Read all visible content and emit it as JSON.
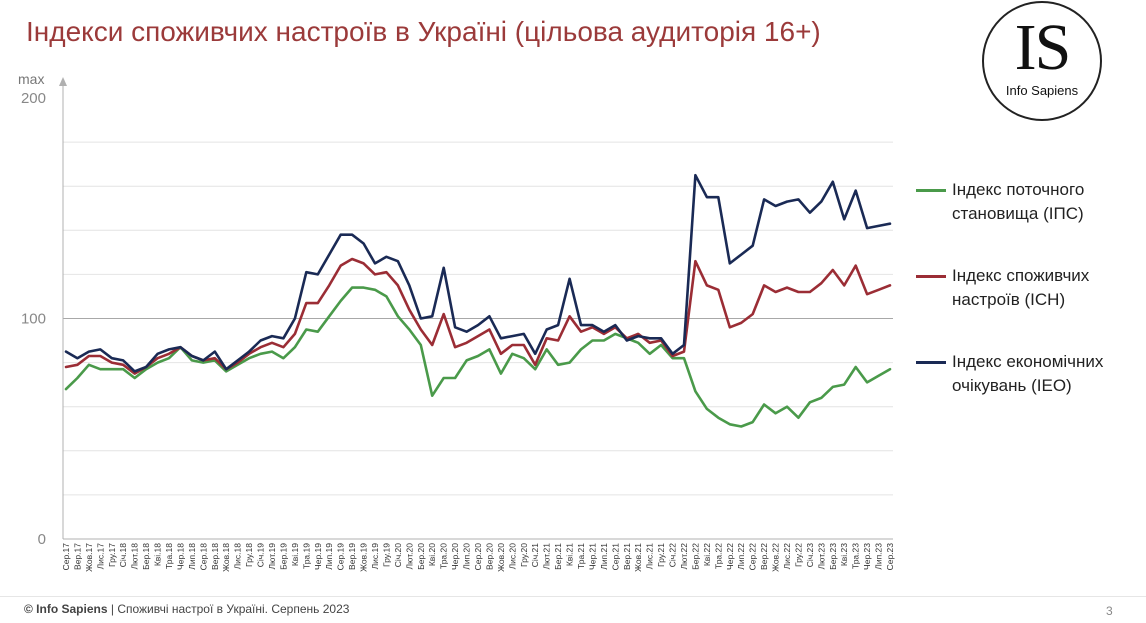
{
  "title": "Індекси споживчих настроїв в Україні (цільова аудиторія 16+)",
  "logo": {
    "mark": "IS",
    "name": "Info Sapiens"
  },
  "footer": {
    "brand": "© Info Sapiens",
    "text": " | Споживчі настрої в Україні. Серпень 2023"
  },
  "page_number": "3",
  "colors": {
    "ips": "#4a9a4a",
    "isn": "#9b2d35",
    "ieo": "#1a2a55",
    "title": "#9b3a3a"
  },
  "chart_data": {
    "type": "line",
    "title": "",
    "xlabel": "",
    "ylabel": "max",
    "ylim": [
      0,
      200
    ],
    "y_ticks": [
      0,
      100,
      200
    ],
    "grid": true,
    "legend_position": "right",
    "categories": [
      "Сер.17",
      "Вер.17",
      "Жов.17",
      "Лис.17",
      "Гру.17",
      "Січ.18",
      "Лют.18",
      "Бер.18",
      "Кві.18",
      "Тра.18",
      "Чер.18",
      "Лип.18",
      "Сер.18",
      "Вер.18",
      "Жов.18",
      "Лис.18",
      "Гру.18",
      "Січ.19",
      "Лют.19",
      "Бер.19",
      "Кві.19",
      "Тра.19",
      "Чер.19",
      "Лип.19",
      "Сер.19",
      "Вер.19",
      "Жов.19",
      "Лис.19",
      "Гру.19",
      "Січ.20",
      "Лют.20",
      "Бер.20",
      "Кві.20",
      "Тра.20",
      "Чер.20",
      "Лип.20",
      "Сер.20",
      "Вер.20",
      "Жов.20",
      "Лис.20",
      "Гру.20",
      "Січ.21",
      "Лют.21",
      "Бер.21",
      "Кві.21",
      "Тра.21",
      "Чер.21",
      "Лип.21",
      "Сер.21",
      "Вер.21",
      "Жов.21",
      "Лис.21",
      "Гру.21",
      "Січ.22",
      "Лют.22",
      "Бер.22",
      "Кві.22",
      "Тра.22",
      "Чер.22",
      "Лип.22",
      "Сер.22",
      "Вер.22",
      "Жов.22",
      "Лис.22",
      "Гру.22",
      "Січ.23",
      "Лют.23",
      "Бер.23",
      "Кві.23",
      "Тра.23",
      "Чер.23",
      "Лип.23",
      "Сер.23"
    ],
    "series": [
      {
        "name": "Індекс поточного становища (ІПС)",
        "key": "ips",
        "values": [
          68,
          73,
          79,
          77,
          77,
          77,
          73,
          77,
          80,
          82,
          87,
          81,
          80,
          81,
          76,
          79,
          82,
          84,
          85,
          82,
          87,
          95,
          94,
          101,
          108,
          114,
          114,
          113,
          110,
          101,
          95,
          88,
          65,
          73,
          73,
          81,
          83,
          86,
          75,
          84,
          82,
          77,
          86,
          79,
          80,
          86,
          90,
          90,
          93,
          91,
          89,
          84,
          88,
          82,
          82,
          67,
          59,
          55,
          52,
          51,
          53,
          61,
          57,
          60,
          55,
          62,
          64,
          69,
          70,
          78,
          71,
          74,
          77
        ]
      },
      {
        "name": "Індекс споживчих настроїв (ІСН)",
        "key": "isn",
        "values": [
          78,
          79,
          83,
          83,
          80,
          79,
          75,
          78,
          82,
          84,
          87,
          83,
          81,
          82,
          77,
          80,
          84,
          87,
          89,
          87,
          93,
          107,
          107,
          115,
          124,
          127,
          125,
          120,
          121,
          115,
          104,
          95,
          88,
          102,
          87,
          89,
          92,
          95,
          84,
          88,
          88,
          79,
          91,
          90,
          101,
          94,
          96,
          93,
          96,
          91,
          93,
          89,
          90,
          83,
          85,
          126,
          115,
          113,
          96,
          98,
          102,
          115,
          112,
          114,
          112,
          112,
          116,
          122,
          115,
          124,
          111,
          113,
          115
        ]
      },
      {
        "name": "Індекс економічних очікувань (ІЕО)",
        "key": "ieo",
        "values": [
          85,
          82,
          85,
          86,
          82,
          81,
          76,
          78,
          84,
          86,
          87,
          83,
          81,
          85,
          77,
          81,
          85,
          90,
          92,
          91,
          100,
          121,
          120,
          129,
          138,
          138,
          134,
          125,
          128,
          126,
          115,
          100,
          101,
          123,
          96,
          94,
          97,
          101,
          91,
          92,
          93,
          84,
          95,
          97,
          118,
          97,
          97,
          94,
          97,
          90,
          92,
          91,
          91,
          84,
          88,
          165,
          155,
          155,
          125,
          129,
          133,
          154,
          151,
          153,
          154,
          148,
          153,
          162,
          145,
          158,
          141,
          142,
          143
        ]
      }
    ]
  }
}
